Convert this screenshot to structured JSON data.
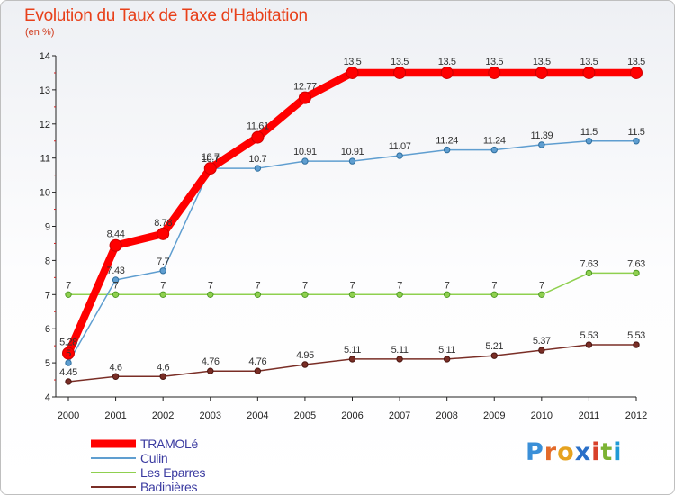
{
  "title": "Evolution du Taux de Taxe d'Habitation",
  "unit": "(en %)",
  "brand": {
    "letters": [
      "P",
      "r",
      "o",
      "x",
      "i",
      "t",
      "i"
    ],
    "colors": [
      "#3a8fd8",
      "#e36a2a",
      "#e6a21e",
      "#2a6fc8",
      "#d8402a",
      "#7cb334",
      "#1f9ad6"
    ]
  },
  "chart_data": {
    "type": "line",
    "title": "Evolution du Taux de Taxe d'Habitation",
    "ylabel": "(en %)",
    "xlabel": "",
    "x": [
      "2000",
      "2001",
      "2002",
      "2003",
      "2004",
      "2005",
      "2006",
      "2007",
      "2008",
      "2009",
      "2010",
      "2011",
      "2012"
    ],
    "yticks": [
      "4",
      "5",
      "6",
      "7",
      "8",
      "9",
      "10",
      "11",
      "12",
      "13",
      "14"
    ],
    "ylim": [
      4,
      14
    ],
    "series": [
      {
        "name": "TRAMOLé",
        "color": "#ff0000",
        "values": [
          5.28,
          8.44,
          8.78,
          10.7,
          11.61,
          12.77,
          13.5,
          13.5,
          13.5,
          13.5,
          13.5,
          13.5,
          13.5
        ],
        "labels": [
          "5.28",
          "8.44",
          "8.78",
          "10.7",
          "11.61",
          "12.77",
          "13.5",
          "13.5",
          "13.5",
          "13.5",
          "13.5",
          "13.5",
          "13.5"
        ]
      },
      {
        "name": "Culin",
        "color": "#5f9ed0",
        "values": [
          5.0,
          7.43,
          7.7,
          10.7,
          10.7,
          10.91,
          10.91,
          11.07,
          11.24,
          11.24,
          11.39,
          11.5,
          11.5
        ],
        "labels": [
          "5",
          "7.43",
          "7.7",
          "10.7",
          "10.7",
          "10.91",
          "10.91",
          "11.07",
          "11.24",
          "11.24",
          "11.39",
          "11.5",
          "11.5"
        ]
      },
      {
        "name": "Les Eparres",
        "color": "#8fd04f",
        "values": [
          7,
          7,
          7,
          7,
          7,
          7,
          7,
          7,
          7,
          7,
          7,
          7.63,
          7.63
        ],
        "labels": [
          "7",
          "7",
          "7",
          "7",
          "7",
          "7",
          "7",
          "7",
          "7",
          "7",
          "7",
          "7.63",
          "7.63"
        ]
      },
      {
        "name": "Badinières",
        "color": "#7a2e26",
        "values": [
          4.45,
          4.6,
          4.6,
          4.76,
          4.76,
          4.95,
          5.11,
          5.11,
          5.11,
          5.21,
          5.37,
          5.53,
          5.53
        ],
        "labels": [
          "4.45",
          "4.6",
          "4.6",
          "4.76",
          "4.76",
          "4.95",
          "5.11",
          "5.11",
          "5.11",
          "5.21",
          "5.37",
          "5.53",
          "5.53"
        ]
      }
    ],
    "legend": "bottom-left",
    "grid": false
  }
}
